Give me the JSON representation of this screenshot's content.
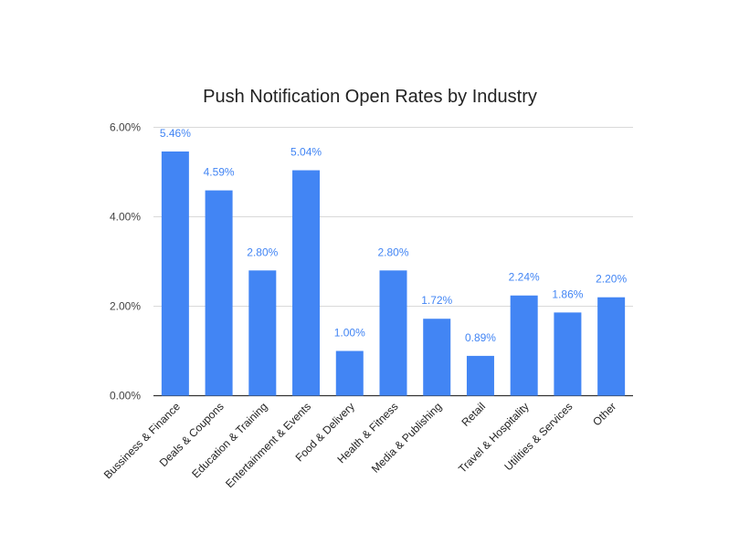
{
  "chart_data": {
    "type": "bar",
    "title": "Push Notification Open Rates by Industry",
    "xlabel": "",
    "ylabel": "",
    "categories": [
      "Bussiness & Finance",
      "Deals & Coupons",
      "Education & Training",
      "Entertainment & Events",
      "Food & Delivery",
      "Health & Fitness",
      "Media & Publishing",
      "Retail",
      "Travel & Hospitality",
      "Utilities & Services",
      "Other"
    ],
    "values": [
      5.46,
      4.59,
      2.8,
      5.04,
      1.0,
      2.8,
      1.72,
      0.89,
      2.24,
      1.86,
      2.2
    ],
    "data_labels": [
      "5.46%",
      "4.59%",
      "2.80%",
      "5.04%",
      "1.00%",
      "2.80%",
      "1.72%",
      "0.89%",
      "2.24%",
      "1.86%",
      "2.20%"
    ],
    "ylim": [
      0,
      6
    ],
    "y_ticks": [
      0,
      2,
      4,
      6
    ],
    "y_tick_labels": [
      "0.00%",
      "2.00%",
      "4.00%",
      "6.00%"
    ],
    "grid": true,
    "legend": "none",
    "bar_color": "#4285F4",
    "label_color": "#4285F4"
  }
}
